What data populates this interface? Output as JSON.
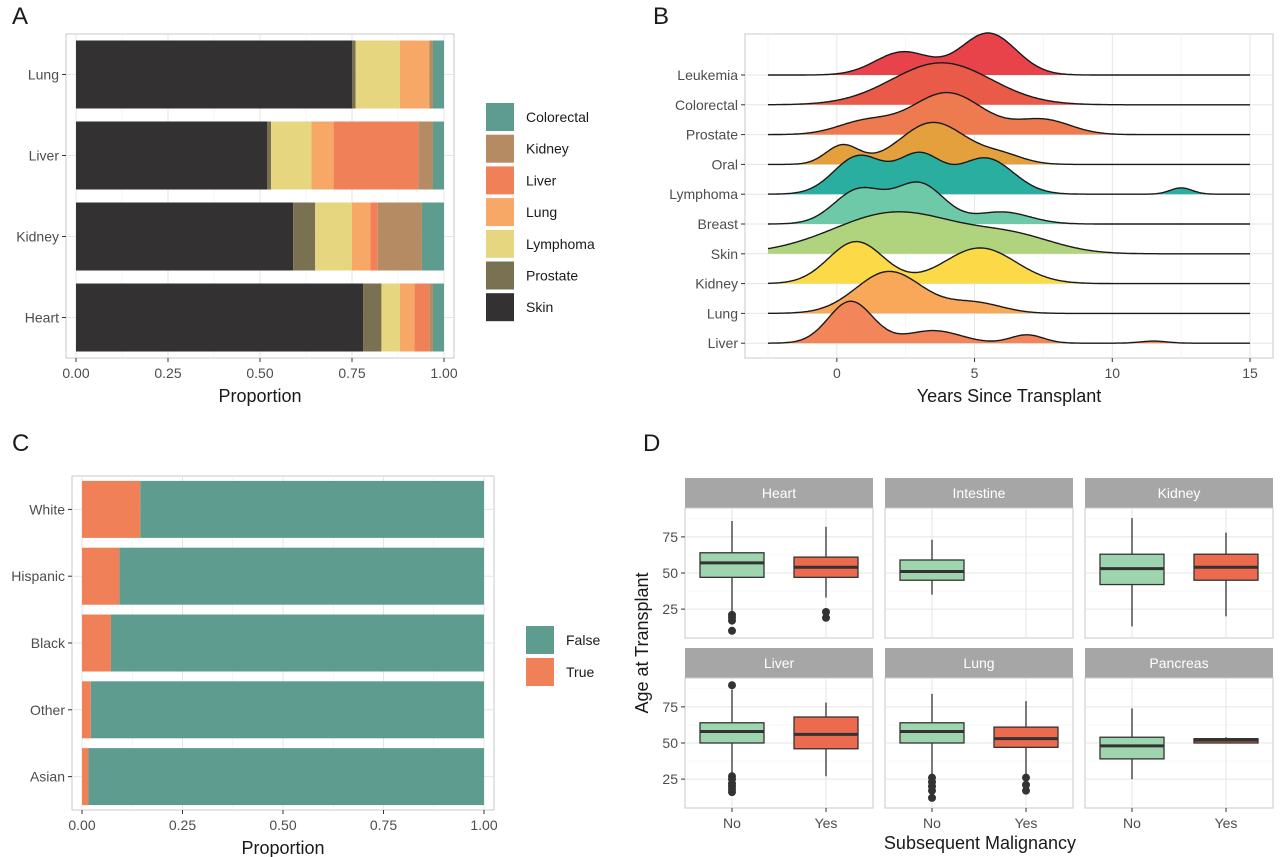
{
  "panel_labels": {
    "a": "A",
    "b": "B",
    "c": "C",
    "d": "D"
  },
  "chart_data": [
    {
      "panel": "A",
      "type": "bar",
      "orientation": "horizontal",
      "stacked": true,
      "xlabel": "Proportion",
      "ylabel": "",
      "xlim": [
        0,
        1
      ],
      "xticks": [
        "0.00",
        "0.25",
        "0.50",
        "0.75",
        "1.00"
      ],
      "categories": [
        "Lung",
        "Liver",
        "Kidney",
        "Heart"
      ],
      "legend_position": "right",
      "series": [
        {
          "name": "Skin",
          "color": "#333132",
          "values": [
            0.75,
            0.52,
            0.59,
            0.78
          ]
        },
        {
          "name": "Prostate",
          "color": "#7a7152",
          "values": [
            0.01,
            0.01,
            0.06,
            0.05
          ]
        },
        {
          "name": "Lymphoma",
          "color": "#e6d680",
          "values": [
            0.12,
            0.11,
            0.1,
            0.05
          ]
        },
        {
          "name": "Lung",
          "color": "#f8a866",
          "values": [
            0.08,
            0.06,
            0.05,
            0.04
          ]
        },
        {
          "name": "Liver",
          "color": "#f08058",
          "values": [
            0.0,
            0.23,
            0.02,
            0.04
          ]
        },
        {
          "name": "Kidney",
          "color": "#b48b62",
          "values": [
            0.01,
            0.04,
            0.12,
            0.01
          ]
        },
        {
          "name": "Colorectal",
          "color": "#5e9c90",
          "values": [
            0.03,
            0.03,
            0.06,
            0.03
          ]
        }
      ],
      "legend_order": [
        "Colorectal",
        "Kidney",
        "Liver",
        "Lung",
        "Lymphoma",
        "Prostate",
        "Skin"
      ]
    },
    {
      "panel": "B",
      "type": "area",
      "subtype": "ridgeline",
      "xlabel": "Years Since Transplant",
      "xlim": [
        -3.5,
        15.5
      ],
      "xticks": [
        "0",
        "5",
        "10",
        "15"
      ],
      "series": [
        {
          "name": "Leukemia",
          "color": "#e8424a",
          "peaks": [
            [
              2.4,
              0.55,
              1.0
            ],
            [
              5.5,
              1.0,
              1.0
            ]
          ]
        },
        {
          "name": "Colorectal",
          "color": "#ea5a48",
          "peaks": [
            [
              3.8,
              1.0,
              1.8
            ]
          ]
        },
        {
          "name": "Prostate",
          "color": "#ee7b50",
          "peaks": [
            [
              1.0,
              0.3,
              1.0
            ],
            [
              4.0,
              1.0,
              1.3
            ],
            [
              7.5,
              0.35,
              1.0
            ]
          ]
        },
        {
          "name": "Oral",
          "color": "#e5a03e",
          "peaks": [
            [
              0.2,
              0.45,
              0.6
            ],
            [
              3.5,
              1.0,
              1.2
            ],
            [
              6.0,
              0.2,
              0.8
            ]
          ]
        },
        {
          "name": "Lymphoma",
          "color": "#2aaea0",
          "peaks": [
            [
              0.8,
              0.9,
              0.9
            ],
            [
              3.0,
              0.9,
              0.8
            ],
            [
              5.4,
              0.85,
              1.0
            ],
            [
              12.5,
              0.15,
              0.4
            ]
          ]
        },
        {
          "name": "Breast",
          "color": "#6ec9a8",
          "peaks": [
            [
              0.8,
              0.85,
              0.9
            ],
            [
              3.0,
              1.0,
              0.9
            ],
            [
              6.0,
              0.3,
              1.0
            ]
          ]
        },
        {
          "name": "Skin",
          "color": "#b0d47e",
          "peaks": [
            [
              2.2,
              1.0,
              2.3
            ],
            [
              6.5,
              0.35,
              1.5
            ]
          ]
        },
        {
          "name": "Kidney",
          "color": "#fcd946",
          "peaks": [
            [
              0.7,
              1.0,
              1.0
            ],
            [
              5.2,
              0.85,
              1.3
            ]
          ]
        },
        {
          "name": "Lung",
          "color": "#f9a85a",
          "peaks": [
            [
              1.9,
              1.0,
              1.2
            ],
            [
              5.0,
              0.25,
              1.0
            ]
          ]
        },
        {
          "name": "Liver",
          "color": "#f3855a",
          "peaks": [
            [
              0.5,
              1.0,
              0.8
            ],
            [
              3.5,
              0.3,
              1.0
            ],
            [
              6.9,
              0.2,
              0.6
            ],
            [
              11.5,
              0.05,
              0.5
            ]
          ]
        }
      ]
    },
    {
      "panel": "C",
      "type": "bar",
      "orientation": "horizontal",
      "stacked": true,
      "xlabel": "Proportion",
      "xlim": [
        0,
        1
      ],
      "xticks": [
        "0.00",
        "0.25",
        "0.50",
        "0.75",
        "1.00"
      ],
      "categories": [
        "White",
        "Hispanic",
        "Black",
        "Other",
        "Asian"
      ],
      "legend_position": "right",
      "series": [
        {
          "name": "True",
          "color": "#f08058",
          "values": [
            0.145,
            0.093,
            0.072,
            0.022,
            0.016
          ]
        },
        {
          "name": "False",
          "color": "#5e9c90",
          "values": [
            0.855,
            0.907,
            0.928,
            0.978,
            0.984
          ]
        }
      ],
      "legend_order": [
        "False",
        "True"
      ]
    },
    {
      "panel": "D",
      "type": "box",
      "xlabel": "Subsequent Malignancy",
      "ylabel": "Age at Transplant",
      "categories": [
        "No",
        "Yes"
      ],
      "yticks": [
        "25",
        "50",
        "75"
      ],
      "ylim": [
        5,
        95
      ],
      "colors": {
        "No": "#9fd5ae",
        "Yes": "#ec6b4f"
      },
      "facets": [
        {
          "name": "Heart",
          "boxes": {
            "No": {
              "min": 20,
              "q1": 47,
              "median": 57,
              "q3": 64,
              "max": 86,
              "outliers": [
                17,
                21,
                10,
                19
              ]
            },
            "Yes": {
              "min": 33,
              "q1": 47,
              "median": 54,
              "q3": 61,
              "max": 82,
              "outliers": [
                23,
                19
              ]
            }
          }
        },
        {
          "name": "Intestine",
          "boxes": {
            "No": {
              "min": 35,
              "q1": 45,
              "median": 51,
              "q3": 59,
              "max": 73,
              "outliers": []
            }
          }
        },
        {
          "name": "Kidney",
          "boxes": {
            "No": {
              "min": 13,
              "q1": 42,
              "median": 53,
              "q3": 63,
              "max": 88,
              "outliers": []
            },
            "Yes": {
              "min": 20,
              "q1": 45,
              "median": 54,
              "q3": 63,
              "max": 78,
              "outliers": []
            }
          }
        },
        {
          "name": "Liver",
          "boxes": {
            "No": {
              "min": 28,
              "q1": 50,
              "median": 58,
              "q3": 64,
              "max": 87,
              "outliers": [
                90,
                27,
                25,
                22,
                20,
                18,
                16
              ]
            },
            "Yes": {
              "min": 27,
              "q1": 46,
              "median": 56,
              "q3": 68,
              "max": 78,
              "outliers": []
            }
          }
        },
        {
          "name": "Lung",
          "boxes": {
            "No": {
              "min": 28,
              "q1": 50,
              "median": 58,
              "q3": 64,
              "max": 84,
              "outliers": [
                26,
                23,
                20,
                17,
                12
              ]
            },
            "Yes": {
              "min": 28,
              "q1": 47,
              "median": 53,
              "q3": 61,
              "max": 79,
              "outliers": [
                26,
                21,
                17
              ]
            }
          }
        },
        {
          "name": "Pancreas",
          "boxes": {
            "No": {
              "min": 25,
              "q1": 39,
              "median": 48,
              "q3": 54,
              "max": 74,
              "outliers": []
            },
            "Yes": {
              "min": 50,
              "q1": 50,
              "median": 52,
              "q3": 53,
              "max": 54,
              "outliers": []
            }
          }
        }
      ]
    }
  ]
}
